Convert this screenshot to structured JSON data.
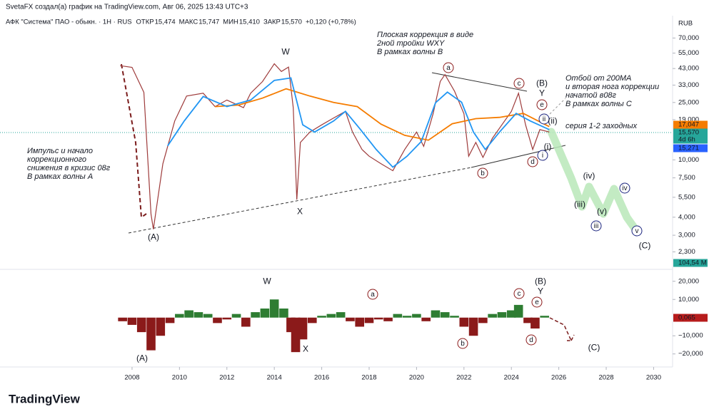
{
  "header": {
    "author_line": "SvetaFX создал(а) график на TradingView.com, Авг 06, 2025 13:43 UTC+3",
    "symbol": "АФК \"Система\" ПАО - обыкн. · 1Н · RUS",
    "ohlc": [
      {
        "label": "ОТКР",
        "value": "15,474"
      },
      {
        "label": "МАКС",
        "value": "15,747"
      },
      {
        "label": "МИН",
        "value": "15,410"
      },
      {
        "label": "ЗАКР",
        "value": "15,570"
      }
    ],
    "change": "+0,120 (+0,78%)"
  },
  "currency": "RUB",
  "brand": "TradingView",
  "badges": [
    {
      "text": "17,047",
      "color": "#f57c00"
    },
    {
      "text": "15,570",
      "color": "#26a69a"
    },
    {
      "text": "4d 6h",
      "color": "#26a69a"
    },
    {
      "text": "15,271",
      "color": "#2962ff"
    },
    {
      "text": "104,54 M",
      "color": "#26a69a"
    },
    {
      "text": "0,065",
      "color": "#b71c1c"
    }
  ],
  "annotations": {
    "left": [
      "Импульс и начало",
      "коррекционного",
      "снижения в кризис 08г",
      "В рамках волны A"
    ],
    "top": [
      "Плоская коррекция в виде",
      "2ной тройки WXY",
      "В рамках волны B"
    ],
    "right": [
      "Отбой от 200MA",
      "и вторая нога коррекции",
      "начатой в08г",
      "В рамках волны C"
    ],
    "series_note": "серия 1-2 заходных",
    "waves_main": [
      "(A)",
      "W",
      "X",
      "a",
      "b",
      "c",
      "d",
      "e",
      "(B)",
      "Y",
      "i",
      "(i)",
      "ii",
      "(ii)",
      "(iii)",
      "iii",
      "(iv)",
      "(v)",
      "iv",
      "v",
      "(C)"
    ],
    "waves_osc": [
      "W",
      "a",
      "c",
      "(B)",
      "Y",
      "e",
      "(A)",
      "X",
      "b",
      "d",
      "(C)"
    ]
  },
  "chart_data": [
    {
      "type": "line",
      "log_scale": true,
      "xlim": [
        2002.43,
        2030.8
      ],
      "ylim": [
        1.8,
        100
      ],
      "yticks": [
        {
          "value": 70,
          "label": "70,000"
        },
        {
          "value": 55,
          "label": "55,000"
        },
        {
          "value": 43,
          "label": "43,000"
        },
        {
          "value": 33,
          "label": "33,000"
        },
        {
          "value": 25,
          "label": "25,000"
        },
        {
          "value": 19,
          "label": "19,000"
        },
        {
          "value": 10,
          "label": "10,000"
        },
        {
          "value": 7.5,
          "label": "7,500"
        },
        {
          "value": 5.5,
          "label": "5,500"
        },
        {
          "value": 4,
          "label": "4,000"
        },
        {
          "value": 3,
          "label": "3,000"
        },
        {
          "value": 2.3,
          "label": "2,300"
        }
      ],
      "series": [
        {
          "color": "#9e3b3b",
          "x": [
            2007.5,
            2008.0,
            2008.5,
            2008.8,
            2008.9,
            2009.3,
            2009.8,
            2010.3,
            2011.0,
            2011.5,
            2012.0,
            2012.7,
            2013.0,
            2013.5,
            2014.0,
            2014.3,
            2014.6,
            2014.8,
            2014.95,
            2015.1,
            2015.5,
            2016.0,
            2016.5,
            2017.0,
            2017.3,
            2017.7,
            2018.0,
            2018.5,
            2019.0,
            2019.5,
            2020.0,
            2020.3,
            2020.7,
            2021.0,
            2021.2,
            2021.6,
            2022.0,
            2022.2,
            2022.5,
            2022.8,
            2023.2,
            2023.6,
            2024.0,
            2024.3,
            2024.6,
            2024.9,
            2025.2,
            2025.6
          ],
          "values": [
            45,
            43.8,
            29.4,
            4.2,
            3.3,
            9.4,
            18.6,
            27.7,
            29,
            23.4,
            26,
            23,
            29,
            34.9,
            46.4,
            41,
            44,
            23,
            5.3,
            13.2,
            15.6,
            17.5,
            19.5,
            21.7,
            15.6,
            11.8,
            10.6,
            9.4,
            8.4,
            11.8,
            15.6,
            12.4,
            20.9,
            35,
            39,
            30,
            20.9,
            10.6,
            13.2,
            10.4,
            14.1,
            17.5,
            21.7,
            29,
            17.5,
            11.8,
            16.2,
            15.6
          ]
        },
        {
          "color": "#f57c00",
          "x": [
            2011.5,
            2012.5,
            2013.5,
            2014.5,
            2015.5,
            2016.5,
            2017.5,
            2018.5,
            2019.5,
            2020.5,
            2021.5,
            2022.5,
            2023.5,
            2024.5,
            2025.6
          ],
          "values": [
            23.4,
            24,
            26.8,
            31.1,
            27.7,
            25,
            23.4,
            17.7,
            14.8,
            13.7,
            17.8,
            19.3,
            19.7,
            21,
            17
          ]
        },
        {
          "color": "#2196f3",
          "x": [
            2009.5,
            2010.2,
            2011.0,
            2012.0,
            2013.0,
            2014.0,
            2014.7,
            2015.2,
            2015.7,
            2016.5,
            2017.0,
            2017.6,
            2018.3,
            2019.0,
            2019.6,
            2020.2,
            2020.8,
            2021.3,
            2021.9,
            2022.4,
            2022.9,
            2023.5,
            2024.2,
            2024.8,
            2025.6
          ],
          "values": [
            12.5,
            18.6,
            27.5,
            23.4,
            26,
            35.6,
            37,
            17.5,
            15.6,
            18.6,
            21.7,
            16.5,
            11.8,
            8.9,
            10.6,
            13.4,
            24.9,
            29.5,
            25.1,
            15.6,
            11.8,
            15.6,
            21,
            18.6,
            16.2
          ]
        }
      ]
    },
    {
      "type": "bar",
      "xlim": [
        2002.43,
        2030.8
      ],
      "xticks": [
        2008,
        2010,
        2012,
        2014,
        2016,
        2018,
        2020,
        2022,
        2024,
        2026,
        2028,
        2030
      ],
      "ylim": [
        -26,
        25
      ],
      "yticks": [
        {
          "value": 20,
          "label": "20,000"
        },
        {
          "value": 10,
          "label": "10,000"
        },
        {
          "value": -10,
          "label": "−10,000"
        },
        {
          "value": -20,
          "label": "−20,000"
        }
      ],
      "pos_color": "#2e7d32",
      "neg_color": "#8b1a1a",
      "x": [
        2007.6,
        2008.0,
        2008.4,
        2008.8,
        2009.2,
        2009.6,
        2010.0,
        2010.4,
        2010.8,
        2011.2,
        2011.6,
        2012.0,
        2012.4,
        2012.8,
        2013.2,
        2013.6,
        2014.0,
        2014.4,
        2014.7,
        2014.9,
        2015.2,
        2015.6,
        2016.0,
        2016.4,
        2016.8,
        2017.2,
        2017.6,
        2018.0,
        2018.4,
        2018.8,
        2019.2,
        2019.6,
        2020.0,
        2020.4,
        2020.8,
        2021.2,
        2021.6,
        2022.0,
        2022.4,
        2022.8,
        2023.2,
        2023.6,
        2024.0,
        2024.3,
        2024.7,
        2025.0,
        2025.4
      ],
      "values": [
        -2,
        -4,
        -8,
        -18,
        -10,
        -3,
        2,
        4,
        3,
        2,
        -3,
        -1,
        2,
        -5,
        3,
        5,
        10,
        5,
        -8,
        -19,
        -12,
        -3,
        1,
        2,
        3,
        -2,
        -5,
        -3,
        -1,
        -2,
        2,
        1,
        2,
        -2,
        4,
        3,
        1,
        -5,
        -10,
        -3,
        2,
        3,
        4,
        7,
        -3,
        -6,
        1
      ]
    }
  ]
}
